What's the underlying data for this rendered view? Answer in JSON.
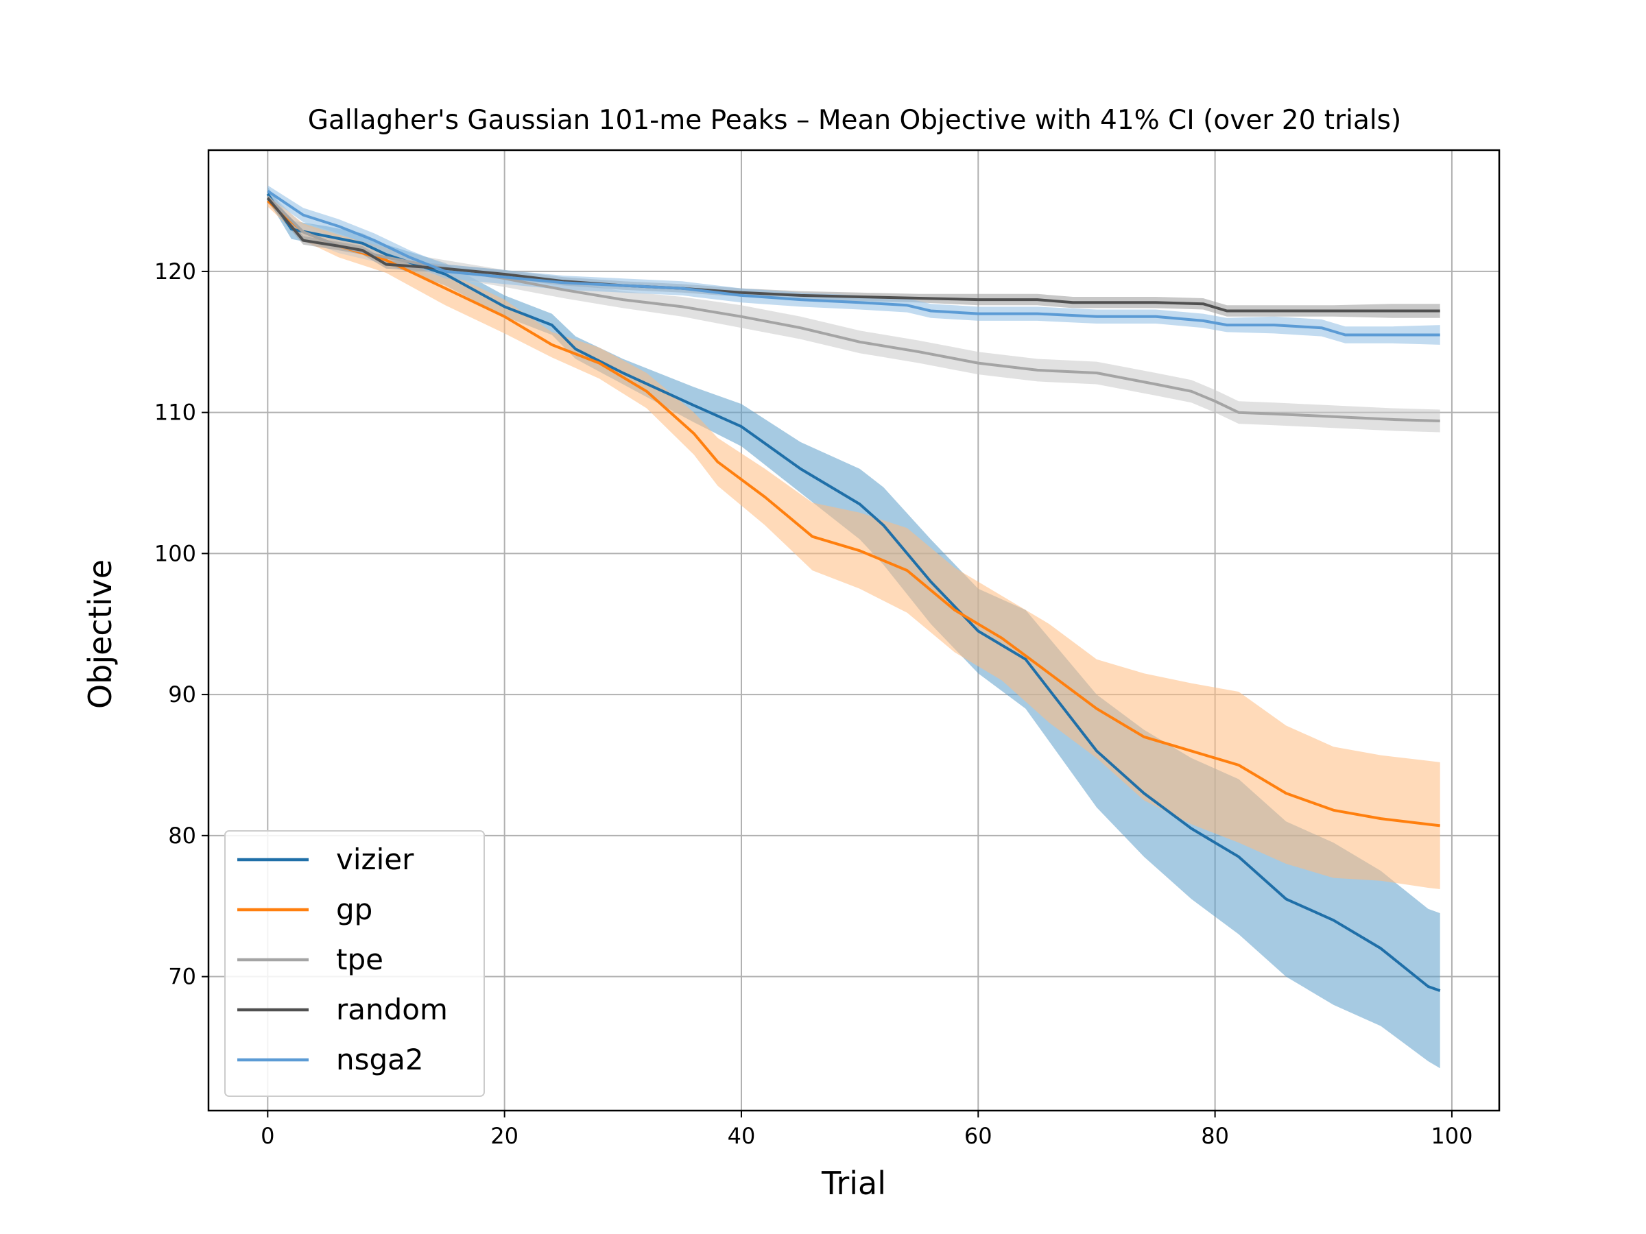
{
  "chart_data": {
    "type": "line",
    "title": "Gallagher's Gaussian 101-me Peaks – Mean Objective with 41% CI (over 20 trials)",
    "xlabel": "Trial",
    "ylabel": "Objective",
    "xlim": [
      -5,
      104
    ],
    "ylim": [
      60.5,
      128.6
    ],
    "xticks": [
      0,
      20,
      40,
      60,
      80,
      100
    ],
    "yticks": [
      70,
      80,
      90,
      100,
      110,
      120
    ],
    "grid": true,
    "legend_position": "lower-left",
    "series": [
      {
        "name": "vizier",
        "color": "#1f6fa8",
        "band_color": "#5c9fcb",
        "x": [
          0,
          2,
          5,
          8,
          10,
          15,
          20,
          24,
          26,
          30,
          36,
          40,
          45,
          50,
          52,
          56,
          60,
          64,
          70,
          74,
          78,
          82,
          86,
          90,
          94,
          98,
          99
        ],
        "y": [
          125.5,
          123.0,
          122.5,
          122.0,
          121.2,
          119.8,
          117.5,
          116.2,
          114.5,
          112.8,
          110.5,
          109.0,
          106.0,
          103.5,
          102.0,
          98.0,
          94.5,
          92.5,
          86.0,
          83.0,
          80.5,
          78.5,
          75.5,
          74.0,
          72.0,
          69.3,
          69.0
        ],
        "lower": [
          125.1,
          122.3,
          121.8,
          121.3,
          120.5,
          119.0,
          116.8,
          115.5,
          113.8,
          112.0,
          109.3,
          107.6,
          104.3,
          101.0,
          99.2,
          95.0,
          91.5,
          89.0,
          82.0,
          78.5,
          75.5,
          73.0,
          70.0,
          68.0,
          66.5,
          64.0,
          63.5
        ],
        "upper": [
          126.0,
          123.6,
          123.2,
          122.7,
          121.9,
          120.6,
          118.3,
          117.0,
          115.4,
          113.8,
          111.8,
          110.6,
          107.9,
          106.0,
          104.7,
          101.0,
          97.5,
          96.0,
          90.0,
          87.5,
          85.5,
          84.0,
          81.0,
          79.5,
          77.5,
          74.8,
          74.5
        ]
      },
      {
        "name": "gp",
        "color": "#ff7f0e",
        "band_color": "#ffbc80",
        "x": [
          0,
          3,
          6,
          10,
          15,
          20,
          24,
          28,
          32,
          36,
          38,
          42,
          46,
          50,
          54,
          58,
          62,
          66,
          70,
          74,
          78,
          82,
          86,
          90,
          94,
          98,
          99
        ],
        "y": [
          125.0,
          122.8,
          121.8,
          120.8,
          118.8,
          116.8,
          114.8,
          113.5,
          111.5,
          108.5,
          106.5,
          104.0,
          101.2,
          100.2,
          98.8,
          96.0,
          94.0,
          91.5,
          89.0,
          87.0,
          86.0,
          85.0,
          83.0,
          81.8,
          81.2,
          80.8,
          80.7
        ],
        "lower": [
          124.6,
          122.2,
          121.0,
          119.9,
          117.6,
          115.6,
          113.9,
          112.4,
          110.3,
          107.0,
          104.8,
          102.0,
          98.8,
          97.5,
          95.8,
          93.0,
          91.0,
          88.0,
          85.5,
          82.5,
          80.8,
          79.5,
          78.0,
          77.0,
          76.8,
          76.3,
          76.2
        ],
        "upper": [
          125.4,
          123.4,
          122.6,
          121.7,
          120.0,
          118.0,
          115.7,
          114.6,
          112.8,
          110.0,
          108.2,
          106.0,
          103.6,
          102.9,
          101.8,
          99.0,
          97.0,
          95.0,
          92.5,
          91.5,
          90.8,
          90.2,
          87.8,
          86.3,
          85.7,
          85.3,
          85.2
        ]
      },
      {
        "name": "tpe",
        "color": "#a4a4a4",
        "band_color": "#c8c8c8",
        "x": [
          0,
          3,
          6,
          10,
          15,
          20,
          25,
          30,
          35,
          40,
          45,
          50,
          55,
          60,
          65,
          70,
          75,
          78,
          80,
          82,
          85,
          90,
          95,
          99
        ],
        "y": [
          125.3,
          122.8,
          121.8,
          121.0,
          120.2,
          119.5,
          118.7,
          118.0,
          117.5,
          116.8,
          116.0,
          115.0,
          114.3,
          113.5,
          113.0,
          112.8,
          112.0,
          111.5,
          110.8,
          110.0,
          109.9,
          109.7,
          109.5,
          109.4
        ],
        "lower": [
          124.9,
          122.3,
          121.3,
          120.5,
          119.6,
          118.9,
          118.1,
          117.4,
          116.8,
          116.0,
          115.2,
          114.2,
          113.5,
          112.7,
          112.2,
          112.0,
          111.2,
          110.7,
          110.0,
          109.2,
          109.1,
          108.9,
          108.7,
          108.6
        ],
        "upper": [
          125.7,
          123.3,
          122.3,
          121.5,
          120.8,
          120.1,
          119.3,
          118.6,
          118.2,
          117.6,
          116.8,
          115.8,
          115.1,
          114.3,
          113.8,
          113.6,
          112.8,
          112.3,
          111.6,
          110.8,
          110.7,
          110.5,
          110.3,
          110.2
        ]
      },
      {
        "name": "random",
        "color": "#505050",
        "band_color": "#9a9a9a",
        "x": [
          0,
          3,
          6,
          8,
          10,
          15,
          20,
          25,
          30,
          35,
          40,
          45,
          50,
          55,
          60,
          65,
          68,
          70,
          75,
          79,
          81,
          85,
          90,
          95,
          99
        ],
        "y": [
          125.2,
          122.2,
          121.8,
          121.5,
          120.5,
          120.2,
          119.8,
          119.3,
          119.0,
          118.8,
          118.5,
          118.3,
          118.2,
          118.1,
          118.0,
          118.0,
          117.8,
          117.8,
          117.8,
          117.7,
          117.2,
          117.2,
          117.2,
          117.2,
          117.2
        ],
        "lower": [
          124.9,
          121.9,
          121.5,
          121.2,
          120.2,
          119.9,
          119.5,
          119.0,
          118.7,
          118.5,
          118.2,
          118.0,
          117.9,
          117.8,
          117.6,
          117.6,
          117.4,
          117.4,
          117.4,
          117.3,
          116.8,
          116.8,
          116.8,
          116.7,
          116.7
        ],
        "upper": [
          125.5,
          122.5,
          122.1,
          121.8,
          120.8,
          120.5,
          120.1,
          119.6,
          119.3,
          119.1,
          118.8,
          118.6,
          118.5,
          118.4,
          118.4,
          118.4,
          118.2,
          118.2,
          118.2,
          118.1,
          117.6,
          117.6,
          117.6,
          117.7,
          117.7
        ]
      },
      {
        "name": "nsga2",
        "color": "#5b9bd5",
        "band_color": "#8fbde3",
        "x": [
          0,
          3,
          6,
          9,
          12,
          15,
          20,
          25,
          30,
          35,
          40,
          45,
          50,
          54,
          56,
          60,
          65,
          70,
          75,
          79,
          81,
          85,
          89,
          91,
          95,
          99
        ],
        "y": [
          125.7,
          124.0,
          123.2,
          122.2,
          121.0,
          120.0,
          119.6,
          119.2,
          119.0,
          118.8,
          118.3,
          118.0,
          117.8,
          117.6,
          117.2,
          117.0,
          117.0,
          116.8,
          116.8,
          116.5,
          116.2,
          116.2,
          116.0,
          115.5,
          115.5,
          115.5
        ],
        "lower": [
          125.3,
          123.5,
          122.7,
          121.7,
          120.5,
          119.5,
          119.1,
          118.7,
          118.5,
          118.3,
          117.8,
          117.5,
          117.3,
          117.1,
          116.7,
          116.5,
          116.5,
          116.3,
          116.3,
          116.0,
          115.7,
          115.6,
          115.4,
          114.9,
          114.9,
          114.8
        ],
        "upper": [
          126.1,
          124.5,
          123.7,
          122.7,
          121.5,
          120.5,
          120.1,
          119.7,
          119.5,
          119.3,
          118.8,
          118.5,
          118.3,
          118.1,
          117.7,
          117.5,
          117.5,
          117.3,
          117.3,
          117.0,
          116.7,
          116.8,
          116.6,
          116.1,
          116.1,
          116.2
        ]
      }
    ]
  }
}
